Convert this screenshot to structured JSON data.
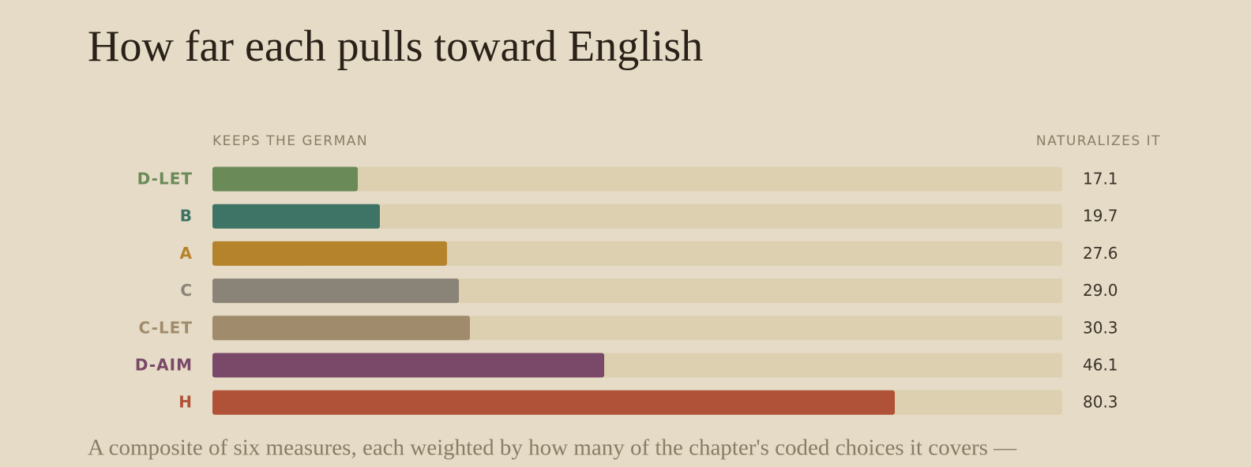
{
  "chart_data": {
    "type": "bar",
    "orientation": "horizontal",
    "title": "How far each pulls toward English",
    "axis_left_label": "KEEPS THE GERMAN",
    "axis_right_label": "NATURALIZES IT",
    "categories": [
      "D-LET",
      "B",
      "A",
      "C",
      "C-LET",
      "D-AIM",
      "H"
    ],
    "values": [
      17.1,
      19.7,
      27.6,
      29.0,
      30.3,
      46.1,
      80.3
    ],
    "value_labels": [
      "17.1",
      "19.7",
      "27.6",
      "29.0",
      "30.3",
      "46.1",
      "80.3"
    ],
    "colors": [
      "#6a8a58",
      "#3e7466",
      "#b5832c",
      "#8a8478",
      "#a08c6c",
      "#7a4868",
      "#b05238"
    ],
    "xlim": [
      0,
      100
    ],
    "caption": "A composite of six measures, each weighted by how many of the chapter's coded choices it covers —"
  }
}
